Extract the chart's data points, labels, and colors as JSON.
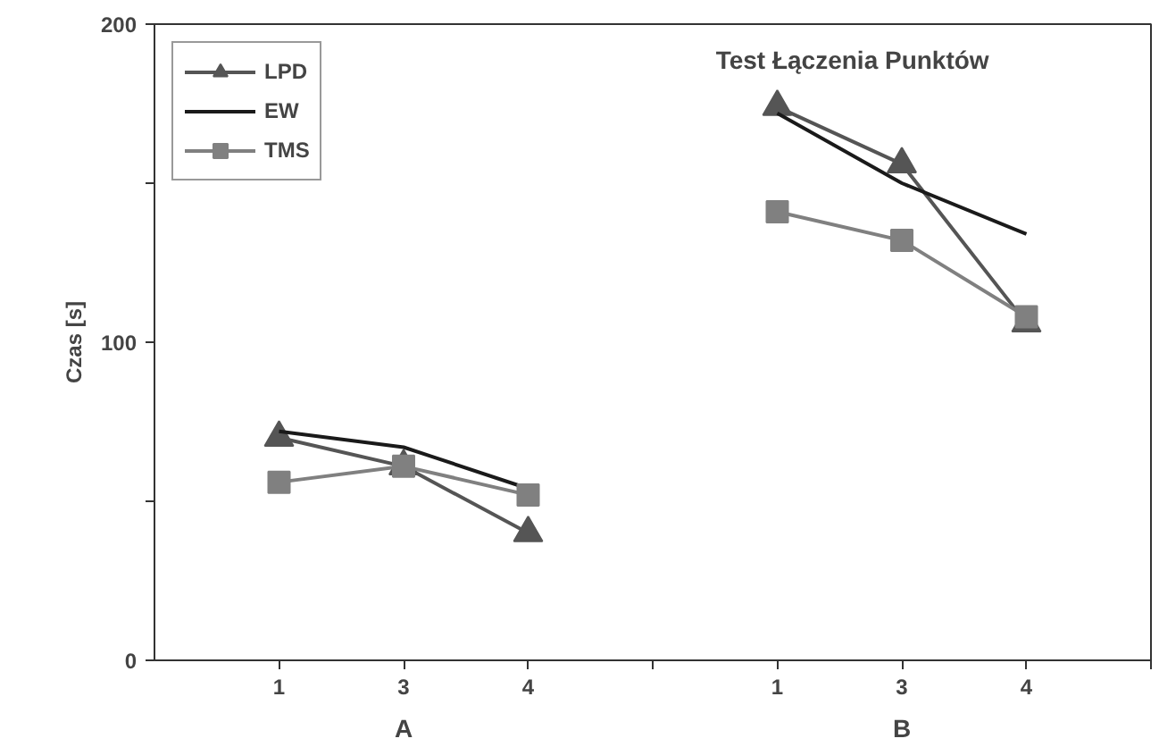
{
  "chart_data": {
    "type": "line",
    "title": "Test Łączenia Punktów",
    "ylabel": "Czas [s]",
    "categories": [
      "1",
      "3",
      "4",
      null,
      "1",
      "3",
      "4"
    ],
    "annotations": [
      "A",
      "B"
    ],
    "series": [
      {
        "name": "LPD",
        "color": "#555555",
        "marker": "triangle",
        "values": [
          70,
          61,
          40,
          null,
          174,
          156,
          106
        ]
      },
      {
        "name": "EW",
        "color": "#1a1a1a",
        "marker": "none",
        "values": [
          72,
          67,
          54,
          null,
          172,
          150,
          134
        ]
      },
      {
        "name": "TMS",
        "color": "#808080",
        "marker": "square",
        "values": [
          56,
          61,
          52,
          null,
          141,
          132,
          108
        ]
      }
    ],
    "ylim": [
      0,
      200
    ],
    "yticks": [
      0,
      {
        "value": 50,
        "label": null
      },
      100,
      {
        "value": 150,
        "label": null
      },
      200
    ],
    "grid": false,
    "legend": "top left",
    "line_style": "solid"
  }
}
